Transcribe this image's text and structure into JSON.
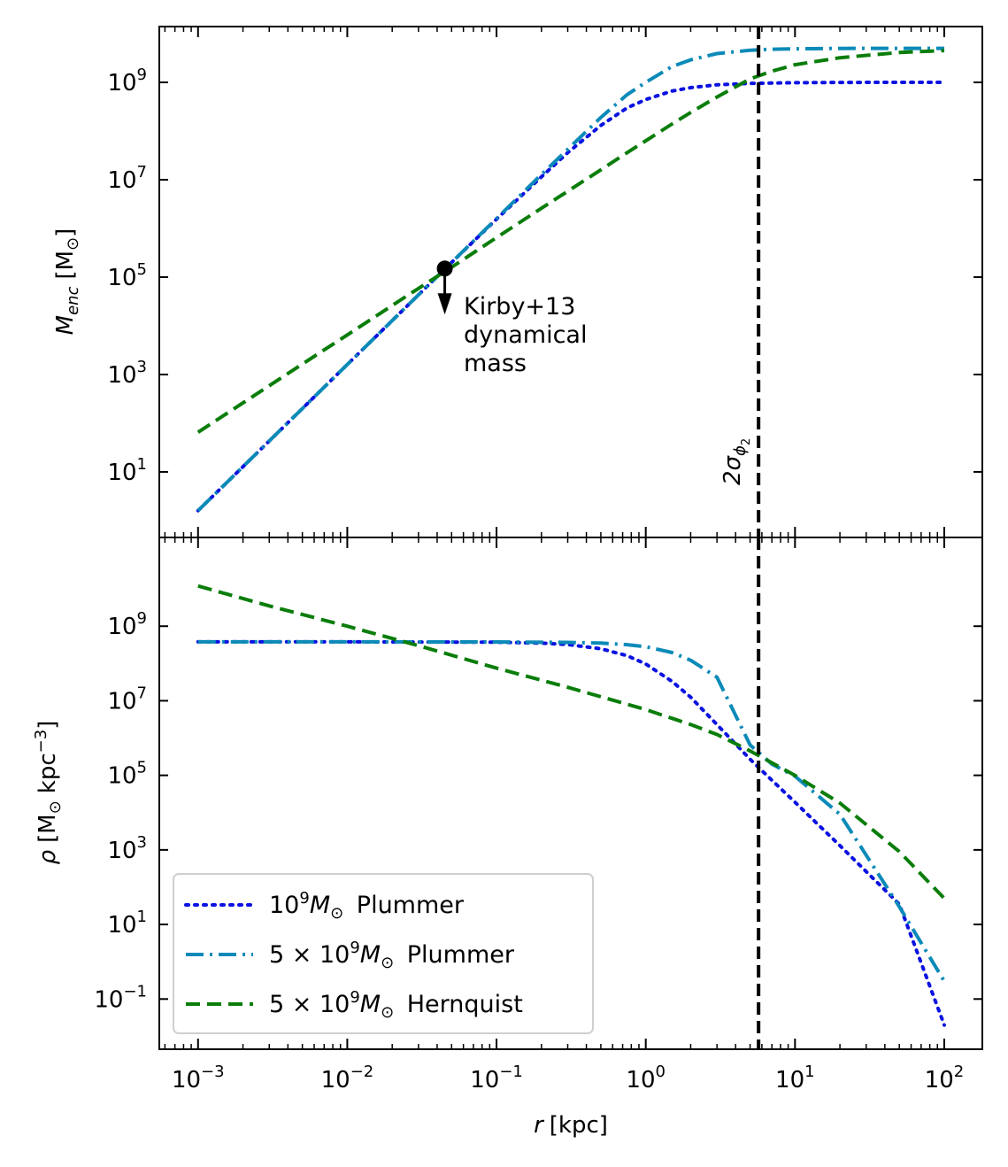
{
  "colors": {
    "plummer1": "#0b12e0",
    "plummer5": "#0b8ab8",
    "hernquist": "#0a7d0a",
    "marker": "#000000",
    "vline": "#000000"
  },
  "chart_data": [
    {
      "type": "line",
      "panel": "top",
      "xscale": "log",
      "yscale": "log",
      "xlim": [
        0.00055,
        180
      ],
      "ylim": [
        0.45,
        14000000000
      ],
      "ylabel": "M_enc [M_⊙]",
      "ylabel_main": "M",
      "ylabel_sub": "enc",
      "ylabel_unit": "[M",
      "ylabel_unit_sub": "⊙",
      "ylabel_close": "]",
      "yticks": [
        {
          "base": "10",
          "exp": "1",
          "value": 10
        },
        {
          "base": "10",
          "exp": "3",
          "value": 1000
        },
        {
          "base": "10",
          "exp": "5",
          "value": 100000
        },
        {
          "base": "10",
          "exp": "7",
          "value": 10000000
        },
        {
          "base": "10",
          "exp": "9",
          "value": 1000000000
        }
      ],
      "series": [
        {
          "name": "10^9 M_⊙ Plummer",
          "style": "dotted",
          "colorKey": "plummer1",
          "x": [
            0.001,
            0.0025,
            0.005,
            0.01,
            0.025,
            0.05,
            0.1,
            0.2,
            0.3,
            0.5,
            0.75,
            1,
            1.5,
            2,
            3,
            5,
            7,
            10,
            20,
            50,
            100
          ],
          "y": [
            1.6,
            25,
            200,
            1600,
            25000,
            200000,
            1550000,
            11500000,
            36000000,
            130000000,
            300000000,
            445000000,
            665000000,
            780000000,
            890000000,
            950000000,
            970000000,
            985000000,
            995000000,
            999000000,
            1000000000
          ]
        },
        {
          "name": "5×10^9 M_⊙ Plummer",
          "style": "dashdot",
          "colorKey": "plummer5",
          "x": [
            0.001,
            0.0025,
            0.005,
            0.01,
            0.025,
            0.05,
            0.1,
            0.2,
            0.3,
            0.5,
            0.75,
            1,
            1.5,
            2,
            3,
            5,
            7,
            10,
            20,
            50,
            100
          ],
          "y": [
            1.6,
            25,
            200,
            1600,
            25000,
            200000,
            1600000,
            12800000,
            42000000,
            190000000,
            560000000,
            1000000000,
            2120000000,
            2900000000,
            3900000000,
            4550000000,
            4800000000,
            4900000000,
            4980000000,
            5000000000,
            5000000000
          ]
        },
        {
          "name": "5×10^9 M_⊙ Hernquist",
          "style": "dashed",
          "colorKey": "hernquist",
          "x": [
            0.001,
            0.0025,
            0.005,
            0.01,
            0.025,
            0.05,
            0.1,
            0.2,
            0.3,
            0.5,
            0.75,
            1,
            1.5,
            2,
            3,
            5,
            7,
            10,
            20,
            50,
            100
          ],
          "y": [
            65,
            410,
            1640,
            6500,
            41000,
            160000,
            650000,
            2600000,
            5800000,
            16000000,
            36000000,
            63000000,
            140000000,
            240000000,
            500000000,
            1180000000,
            1700000000,
            2300000000,
            3200000000,
            4100000000,
            4500000000
          ]
        }
      ],
      "marker": {
        "x": 0.045,
        "y": 150000,
        "label": "Kirby+13 dynamical mass",
        "label_lines": [
          "Kirby+13",
          "dynamical",
          "mass"
        ],
        "arrow": "down"
      },
      "vline": {
        "x": 5.7,
        "label": "2σ_φ2",
        "label_main": "2σ",
        "label_sub": "ϕ",
        "label_subsub": "2"
      }
    },
    {
      "type": "line",
      "panel": "bottom",
      "xscale": "log",
      "yscale": "log",
      "xlim": [
        0.00055,
        180
      ],
      "ylim": [
        0.0045,
        240000000000
      ],
      "xlabel": "r [kpc]",
      "xlabel_main": "r",
      "xlabel_unit": "[kpc]",
      "ylabel": "ρ [M_⊙ kpc^-3]",
      "ylabel_rho": "ρ",
      "ylabel_open": "[M",
      "ylabel_sun": "⊙",
      "ylabel_kpc": "kpc",
      "ylabel_exp": "−3",
      "ylabel_close": "]",
      "xticks": [
        {
          "base": "10",
          "exp": "−3",
          "value": 0.001
        },
        {
          "base": "10",
          "exp": "−2",
          "value": 0.01
        },
        {
          "base": "10",
          "exp": "−1",
          "value": 0.1
        },
        {
          "base": "10",
          "exp": "0",
          "value": 1
        },
        {
          "base": "10",
          "exp": "1",
          "value": 10
        },
        {
          "base": "10",
          "exp": "2",
          "value": 100
        }
      ],
      "yticks": [
        {
          "base": "10",
          "exp": "−1",
          "value": 0.1
        },
        {
          "base": "10",
          "exp": "1",
          "value": 10
        },
        {
          "base": "10",
          "exp": "3",
          "value": 1000
        },
        {
          "base": "10",
          "exp": "5",
          "value": 100000
        },
        {
          "base": "10",
          "exp": "7",
          "value": 10000000
        },
        {
          "base": "10",
          "exp": "9",
          "value": 1000000000
        }
      ],
      "series": [
        {
          "name": "10^9 M_⊙ Plummer",
          "style": "dotted",
          "colorKey": "plummer1",
          "x": [
            0.001,
            0.01,
            0.1,
            0.2,
            0.3,
            0.5,
            0.75,
            1,
            1.5,
            2,
            3,
            5,
            7,
            10,
            20,
            50,
            100
          ],
          "y": [
            380000000,
            380000000,
            372000000,
            352000000,
            322000000,
            248000000,
            162000000,
            97000000,
            33000000,
            12500000,
            2300000,
            270000,
            74000,
            19000,
            1300,
            35,
            0.02
          ]
        },
        {
          "name": "5×10^9 M_⊙ Plummer",
          "style": "dashdot",
          "colorKey": "plummer5",
          "x": [
            0.001,
            0.01,
            0.1,
            0.3,
            0.5,
            0.75,
            1,
            1.5,
            2,
            3,
            5,
            7,
            10,
            20,
            50,
            100
          ],
          "y": [
            380000000,
            380000000,
            378000000,
            368000000,
            352000000,
            320000000,
            282000000,
            196000000,
            122000000,
            43000000,
            650000,
            200000,
            95000,
            9000,
            30,
            0.3
          ]
        },
        {
          "name": "5×10^9 M_⊙ Hernquist",
          "style": "dashed",
          "colorKey": "hernquist",
          "x": [
            0.001,
            0.003,
            0.01,
            0.03,
            0.1,
            0.3,
            1,
            2,
            3,
            5,
            10,
            20,
            50,
            100
          ],
          "y": [
            12000000000,
            3500000000,
            1000000000,
            300000000,
            75000000,
            23000000,
            5800000,
            2300000,
            1250000,
            450000,
            100000,
            18000,
            900,
            50
          ]
        }
      ],
      "vline": {
        "x": 5.7
      }
    }
  ],
  "legend": {
    "location": "lower-left",
    "entries": [
      {
        "pre": "10",
        "sup": "9",
        "mid": "M",
        "sub": "⊙",
        "post": " Plummer",
        "style": "dotted",
        "colorKey": "plummer1"
      },
      {
        "pre": "5 × 10",
        "sup": "9",
        "mid": "M",
        "sub": "⊙",
        "post": " Plummer",
        "style": "dashdot",
        "colorKey": "plummer5"
      },
      {
        "pre": "5 × 10",
        "sup": "9",
        "mid": "M",
        "sub": "⊙",
        "post": " Hernquist",
        "style": "dashed",
        "colorKey": "hernquist"
      }
    ]
  }
}
